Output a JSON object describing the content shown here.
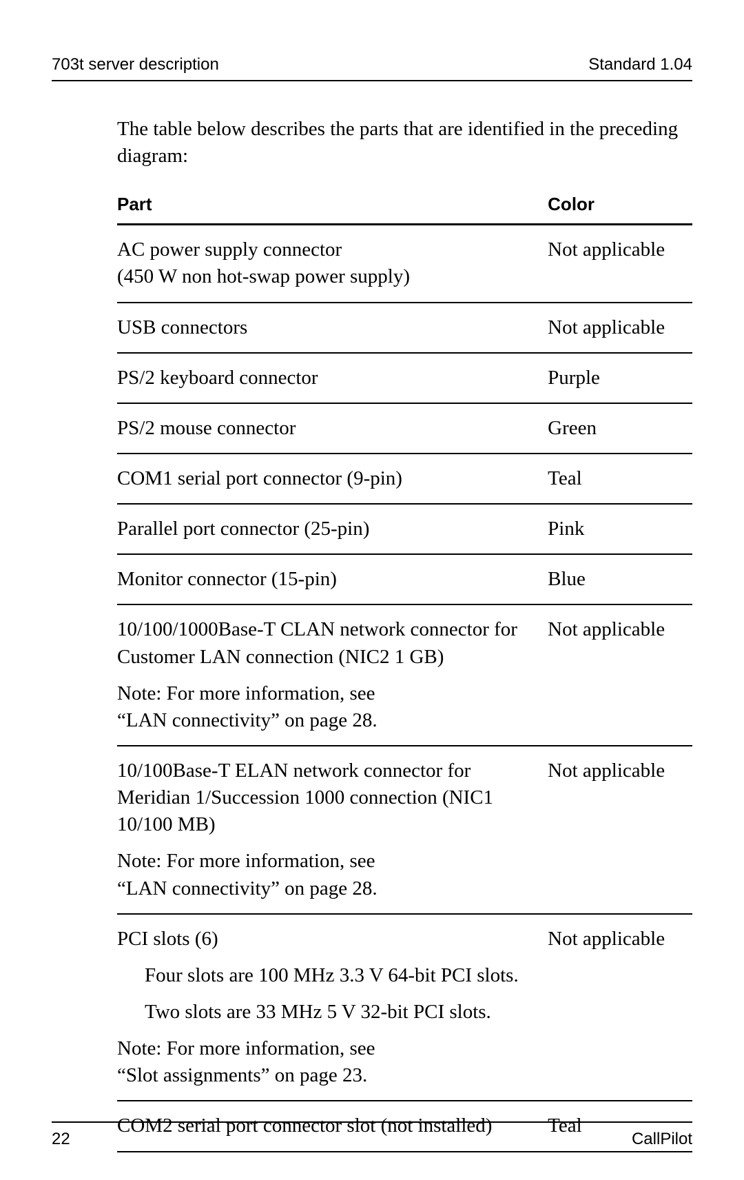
{
  "header": {
    "left": "703t server description",
    "right": "Standard 1.04"
  },
  "intro": "The table below describes the parts that are identified in the preceding diagram:",
  "table": {
    "columns": [
      "Part",
      "Color"
    ],
    "rows": [
      {
        "part_lines": [
          "AC power supply connector",
          "(450 W non hot-swap power supply)"
        ],
        "color": "Not applicable"
      },
      {
        "part_lines": [
          "USB connectors"
        ],
        "color": "Not applicable"
      },
      {
        "part_lines": [
          "PS/2 keyboard connector"
        ],
        "color": "Purple"
      },
      {
        "part_lines": [
          "PS/2 mouse connector"
        ],
        "color": "Green"
      },
      {
        "part_lines": [
          "COM1 serial port connector (9-pin)"
        ],
        "color": "Teal"
      },
      {
        "part_lines": [
          "Parallel port connector (25-pin)"
        ],
        "color": "Pink"
      },
      {
        "part_lines": [
          "Monitor connector (15-pin)"
        ],
        "color": "Blue"
      },
      {
        "part_blocks": [
          [
            "10/100/1000Base-T CLAN network connector for Customer LAN connection (NIC2 1 GB)"
          ],
          [
            "Note: For more information, see",
            "“LAN connectivity” on page 28."
          ]
        ],
        "color": "Not applicable"
      },
      {
        "part_blocks": [
          [
            "10/100Base-T ELAN network connector for Meridian 1/Succession 1000 connection (NIC1 10/100 MB)"
          ],
          [
            "Note: For more information, see",
            "“LAN connectivity” on page 28."
          ]
        ],
        "color": "Not applicable"
      },
      {
        "part_blocks": [
          [
            "PCI slots (6)"
          ],
          {
            "indent": true,
            "lines": [
              "Four slots are 100 MHz 3.3 V 64-bit PCI slots."
            ]
          },
          {
            "indent": true,
            "lines": [
              "Two slots are 33 MHz 5 V 32-bit PCI slots."
            ]
          },
          [
            "Note: For more information, see",
            "“Slot assignments” on page 23."
          ]
        ],
        "color": "Not applicable"
      },
      {
        "part_lines": [
          "COM2 serial port connector slot (not installed)"
        ],
        "color": "Teal"
      }
    ]
  },
  "footer": {
    "page": "22",
    "right": "CallPilot"
  }
}
